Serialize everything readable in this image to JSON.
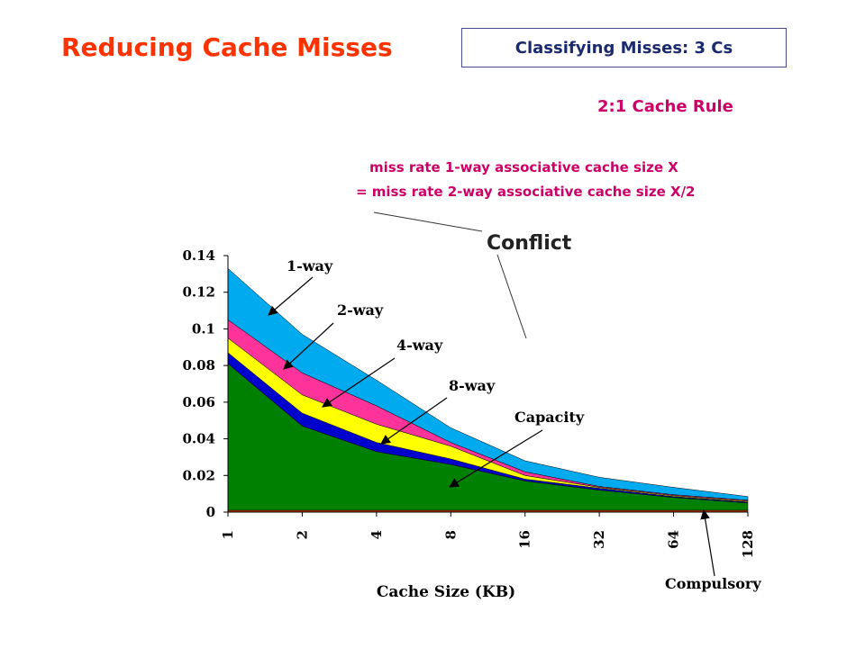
{
  "slide": {
    "title": "Reducing Cache Misses",
    "subtitle": "Classifying Misses: 3 Cs",
    "rule_title": "2:1 Cache Rule",
    "rule_line1": "miss rate 1-way associative cache size X",
    "rule_line2": "= miss rate 2-way associative cache size X/2"
  },
  "colors": {
    "title": "#ff3300",
    "rule": "#cc0066",
    "compulsory": "#cc3300",
    "capacity": "#008000",
    "8-way": "#0000cc",
    "4-way": "#ffff00",
    "2-way": "#ff3399",
    "1-way": "#00aaee"
  },
  "chart_data": {
    "type": "area",
    "stacked": true,
    "title": "",
    "xlabel": "Cache Size (KB)",
    "ylabel": "",
    "categories": [
      "1",
      "2",
      "4",
      "8",
      "16",
      "32",
      "64",
      "128"
    ],
    "ylim": [
      0,
      0.14
    ],
    "yticks": [
      "0",
      "0.02",
      "0.04",
      "0.06",
      "0.08",
      "0.1",
      "0.12",
      "0.14"
    ],
    "series": [
      {
        "name": "Compulsory",
        "values": [
          0.001,
          0.001,
          0.001,
          0.001,
          0.001,
          0.001,
          0.001,
          0.001
        ]
      },
      {
        "name": "Capacity",
        "values": [
          0.08,
          0.046,
          0.032,
          0.025,
          0.016,
          0.011,
          0.007,
          0.004
        ]
      },
      {
        "name": "8-way",
        "values": [
          0.006,
          0.007,
          0.005,
          0.003,
          0.001,
          0.001,
          0.0005,
          0.0005
        ]
      },
      {
        "name": "4-way",
        "values": [
          0.008,
          0.01,
          0.01,
          0.007,
          0.002,
          0.0005,
          0.0005,
          0.0005
        ]
      },
      {
        "name": "2-way",
        "values": [
          0.01,
          0.012,
          0.01,
          0.002,
          0.002,
          0.0005,
          0.0005,
          0.0005
        ]
      },
      {
        "name": "1-way",
        "values": [
          0.028,
          0.021,
          0.014,
          0.008,
          0.006,
          0.005,
          0.004,
          0.002
        ]
      }
    ],
    "annotations": {
      "one_way": "1-way",
      "two_way": "2-way",
      "four_way": "4-way",
      "eight_way": "8-way",
      "capacity": "Capacity",
      "compulsory": "Compulsory",
      "conflict": "Conflict"
    },
    "grid": false,
    "legend": "none"
  }
}
